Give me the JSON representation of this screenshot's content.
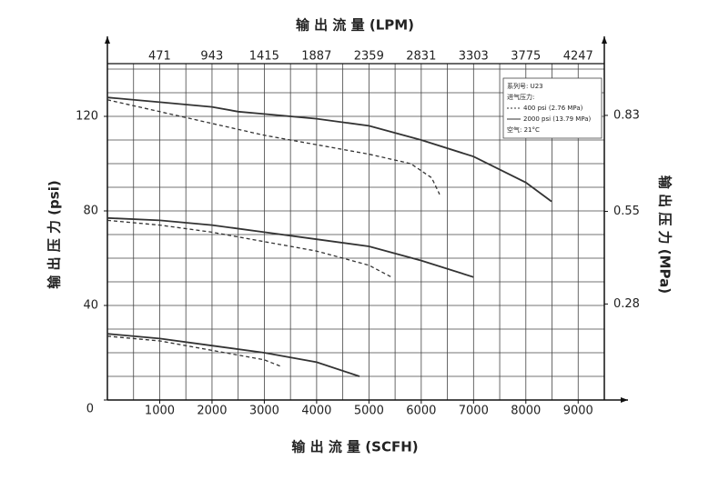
{
  "chart_data": {
    "type": "line",
    "title_top": "输 出 流 量 (LPM)",
    "title_bottom": "输 出 流 量 (SCFH)",
    "title_left": "输 出 压 力 (psi)",
    "title_right": "输 出 压 力 (MPa)",
    "xlim": [
      0,
      9500
    ],
    "xticks": [
      1000,
      2000,
      3000,
      4000,
      5000,
      6000,
      7000,
      8000,
      9000
    ],
    "x2lim": [
      0,
      4483
    ],
    "x2ticks": [
      471,
      943,
      1415,
      1887,
      2359,
      2831,
      3303,
      3775,
      4247
    ],
    "ylim": [
      0,
      140
    ],
    "yticks": [
      0,
      40,
      80,
      120
    ],
    "y2lim": [
      0,
      0.965
    ],
    "y2ticks": [
      0.28,
      0.55,
      0.83
    ],
    "grid": true,
    "x_minor_step": 500,
    "y_minor_step": 10,
    "legend": [
      "系列号: U23",
      "进气压力:",
      "400 psi (2.76 MPa)",
      "2000 psi (13.79 MPa)",
      "空气: 21°C"
    ],
    "series": [
      {
        "dashed": false,
        "color": "#333333",
        "x": [
          0,
          1000,
          2000,
          2500,
          3000,
          4000,
          5000,
          6000,
          7000,
          8000,
          8490
        ],
        "values": [
          128,
          126,
          124,
          122,
          121,
          119,
          116,
          110,
          103,
          92,
          84
        ]
      },
      {
        "dashed": true,
        "color": "#333333",
        "x": [
          0,
          1000,
          2000,
          3000,
          4000,
          5000,
          5800,
          6200,
          6350
        ],
        "values": [
          127,
          122,
          117,
          112,
          108,
          104,
          100,
          94,
          87
        ]
      },
      {
        "dashed": false,
        "color": "#333333",
        "x": [
          0,
          1000,
          2000,
          3000,
          4000,
          5000,
          6000,
          7000
        ],
        "values": [
          77,
          76,
          74,
          71,
          68,
          65,
          59,
          52
        ]
      },
      {
        "dashed": true,
        "color": "#333333",
        "x": [
          0,
          1000,
          2000,
          3000,
          4000,
          5000,
          5430
        ],
        "values": [
          76,
          74,
          71,
          67,
          63,
          57,
          52
        ]
      },
      {
        "dashed": false,
        "color": "#333333",
        "x": [
          0,
          1000,
          2000,
          3000,
          4000,
          4820
        ],
        "values": [
          28,
          26,
          23,
          20,
          16,
          10
        ]
      },
      {
        "dashed": true,
        "color": "#333333",
        "x": [
          0,
          1000,
          2000,
          3000,
          3340
        ],
        "values": [
          27,
          25,
          21,
          17,
          14
        ]
      }
    ]
  }
}
